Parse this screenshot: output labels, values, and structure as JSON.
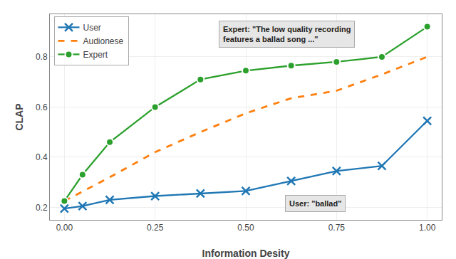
{
  "chart_data": {
    "type": "line",
    "x_label": "Information Desity",
    "y_label": "CLAP",
    "series": [
      {
        "name": "User",
        "color": "#1f77b4",
        "marker": "x",
        "line_style": "solid",
        "x": [
          0,
          0.05,
          0.125,
          0.25,
          0.375,
          0.5,
          0.625,
          0.75,
          0.875,
          1.0
        ],
        "values": [
          0.195,
          0.205,
          0.23,
          0.245,
          0.255,
          0.265,
          0.305,
          0.345,
          0.365,
          0.545
        ]
      },
      {
        "name": "Audionese",
        "color": "#ff7f0e",
        "line_style": "dashed",
        "x": [
          0,
          0.125,
          0.25,
          0.375,
          0.5,
          0.625,
          0.75,
          0.875,
          1.0
        ],
        "values": [
          0.225,
          0.32,
          0.42,
          0.5,
          0.575,
          0.635,
          0.665,
          0.73,
          0.8
        ]
      },
      {
        "name": "Expert",
        "color": "#2ca02c",
        "marker": "circle",
        "line_style": "solid",
        "x": [
          0,
          0.05,
          0.125,
          0.25,
          0.375,
          0.5,
          0.625,
          0.75,
          0.875,
          1.0
        ],
        "values": [
          0.225,
          0.33,
          0.46,
          0.6,
          0.71,
          0.745,
          0.765,
          0.78,
          0.8,
          0.92
        ]
      }
    ],
    "xlim": [
      -0.04,
      1.04
    ],
    "xticks": [
      {
        "value": 0,
        "label": "0.00"
      },
      0.25,
      {
        "value": 0.5,
        "label": "0.50"
      },
      0.75,
      {
        "value": 1.0,
        "label": "1.00"
      }
    ],
    "ylim": [
      0.15,
      0.97
    ],
    "yticks": [
      0.2,
      0.4,
      0.6,
      0.8
    ],
    "grid": true,
    "legend": "upper left",
    "annotations": [
      "Expert: \"The low quality recording\nfeatures a ballad song ...\"",
      "User: \"ballad\""
    ]
  }
}
